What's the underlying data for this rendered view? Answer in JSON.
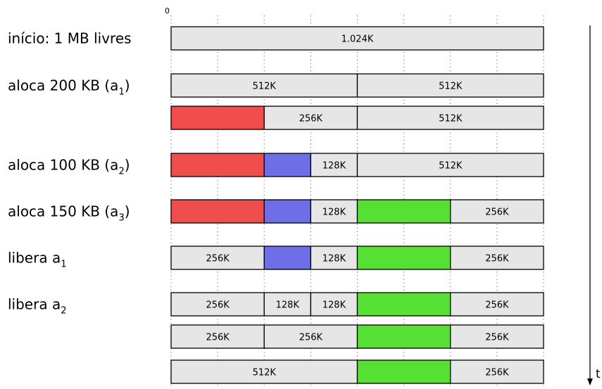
{
  "scale_origin_label": "0",
  "time_axis_label": "t",
  "colors": {
    "free": "#e6e6e6",
    "a1": "#f04d4d",
    "a2": "#6e6ee8",
    "a3": "#57e034",
    "outline": "#000000"
  },
  "grid_divisions_k": [
    0,
    128,
    256,
    384,
    512,
    640,
    768,
    896,
    1024
  ],
  "steps": [
    {
      "label": {
        "text": "início: 1 MB livres",
        "sub": ""
      }
    },
    {
      "label": {
        "text": "aloca 200 KB (a",
        "sub": "1",
        "suffix": ")"
      }
    },
    {
      "label": null
    },
    {
      "label": {
        "text": "aloca 100 KB (a",
        "sub": "2",
        "suffix": ")"
      }
    },
    {
      "label": {
        "text": "aloca 150 KB (a",
        "sub": "3",
        "suffix": ")"
      }
    },
    {
      "label": {
        "text": "libera a",
        "sub": "1",
        "suffix": ""
      }
    },
    {
      "label": {
        "text": "libera a",
        "sub": "2",
        "suffix": ""
      }
    },
    {
      "label": null
    },
    {
      "label": null
    }
  ],
  "rows": [
    [
      {
        "size_k": 1024,
        "fill": "free",
        "text": "1.024K"
      }
    ],
    [
      {
        "size_k": 512,
        "fill": "free",
        "text": "512K"
      },
      {
        "size_k": 512,
        "fill": "free",
        "text": "512K"
      }
    ],
    [
      {
        "size_k": 256,
        "fill": "a1",
        "text": ""
      },
      {
        "size_k": 256,
        "fill": "free",
        "text": "256K"
      },
      {
        "size_k": 512,
        "fill": "free",
        "text": "512K"
      }
    ],
    [
      {
        "size_k": 256,
        "fill": "a1",
        "text": ""
      },
      {
        "size_k": 128,
        "fill": "a2",
        "text": ""
      },
      {
        "size_k": 128,
        "fill": "free",
        "text": "128K"
      },
      {
        "size_k": 512,
        "fill": "free",
        "text": "512K"
      }
    ],
    [
      {
        "size_k": 256,
        "fill": "a1",
        "text": ""
      },
      {
        "size_k": 128,
        "fill": "a2",
        "text": ""
      },
      {
        "size_k": 128,
        "fill": "free",
        "text": "128K"
      },
      {
        "size_k": 256,
        "fill": "a3",
        "text": ""
      },
      {
        "size_k": 256,
        "fill": "free",
        "text": "256K"
      }
    ],
    [
      {
        "size_k": 256,
        "fill": "free",
        "text": "256K"
      },
      {
        "size_k": 128,
        "fill": "a2",
        "text": ""
      },
      {
        "size_k": 128,
        "fill": "free",
        "text": "128K"
      },
      {
        "size_k": 256,
        "fill": "a3",
        "text": ""
      },
      {
        "size_k": 256,
        "fill": "free",
        "text": "256K"
      }
    ],
    [
      {
        "size_k": 256,
        "fill": "free",
        "text": "256K"
      },
      {
        "size_k": 128,
        "fill": "free",
        "text": "128K"
      },
      {
        "size_k": 128,
        "fill": "free",
        "text": "128K"
      },
      {
        "size_k": 256,
        "fill": "a3",
        "text": ""
      },
      {
        "size_k": 256,
        "fill": "free",
        "text": "256K"
      }
    ],
    [
      {
        "size_k": 256,
        "fill": "free",
        "text": "256K"
      },
      {
        "size_k": 256,
        "fill": "free",
        "text": "256K"
      },
      {
        "size_k": 256,
        "fill": "a3",
        "text": ""
      },
      {
        "size_k": 256,
        "fill": "free",
        "text": "256K"
      }
    ],
    [
      {
        "size_k": 512,
        "fill": "free",
        "text": "512K"
      },
      {
        "size_k": 256,
        "fill": "a3",
        "text": ""
      },
      {
        "size_k": 256,
        "fill": "free",
        "text": "256K"
      }
    ]
  ]
}
